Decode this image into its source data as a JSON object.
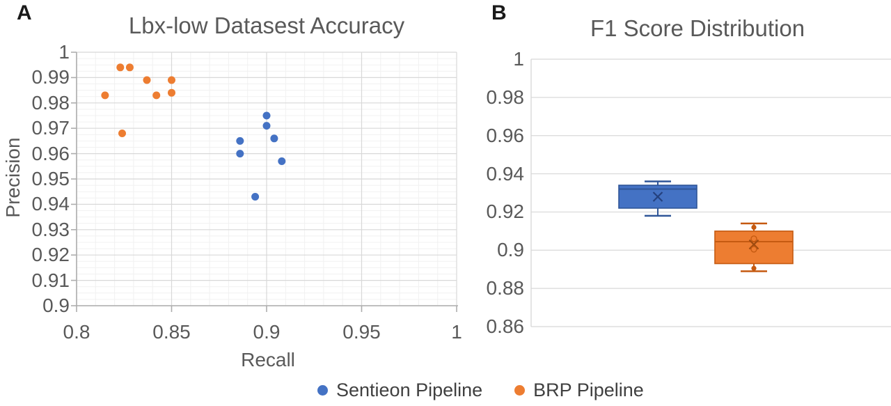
{
  "panels": {
    "a": {
      "letter": "A"
    },
    "b": {
      "letter": "B"
    }
  },
  "colors": {
    "blue": "#4472C4",
    "blue_dark": "#2F5597",
    "blue_mean": "#24407E",
    "orange": "#ED7D31",
    "orange_dark": "#C55A11",
    "orange_mean": "#9E4B10",
    "title_text": "#595959",
    "tick_text": "#595959",
    "legend_text": "#404040",
    "grid_major": "#D8D8D8",
    "grid_minor": "#F1F1F1",
    "axis_line": "#ADADAD"
  },
  "chart_data": [
    {
      "id": "panel-a",
      "type": "scatter",
      "title": "Lbx-low Datasest Accuracy",
      "xlabel": "Recall",
      "ylabel": "Precision",
      "xlim": [
        0.8,
        1.0
      ],
      "ylim": [
        0.9,
        1.0
      ],
      "grid": "major and minor, both axes",
      "x_ticks": [
        0.8,
        0.85,
        0.9,
        0.95,
        1.0
      ],
      "x_tick_labels": [
        "0.8",
        "0.85",
        "0.9",
        "0.95",
        "1"
      ],
      "y_ticks": [
        1.0,
        0.99,
        0.98,
        0.97,
        0.96,
        0.95,
        0.94,
        0.93,
        0.92,
        0.91,
        0.9
      ],
      "y_tick_labels": [
        "1",
        "0.99",
        "0.98",
        "0.97",
        "0.96",
        "0.95",
        "0.94",
        "0.93",
        "0.92",
        "0.91",
        "0.9"
      ],
      "x_minor_step": 0.01,
      "y_minor_step": 0.0025,
      "series": [
        {
          "name": "Sentieon Pipeline",
          "color": "#4472C4",
          "points": [
            [
              0.886,
              0.965
            ],
            [
              0.886,
              0.96
            ],
            [
              0.894,
              0.943
            ],
            [
              0.9,
              0.975
            ],
            [
              0.9,
              0.971
            ],
            [
              0.904,
              0.966
            ],
            [
              0.908,
              0.957
            ]
          ]
        },
        {
          "name": "BRP Pipeline",
          "color": "#ED7D31",
          "points": [
            [
              0.815,
              0.983
            ],
            [
              0.823,
              0.994
            ],
            [
              0.828,
              0.994
            ],
            [
              0.824,
              0.968
            ],
            [
              0.837,
              0.989
            ],
            [
              0.842,
              0.983
            ],
            [
              0.85,
              0.989
            ],
            [
              0.85,
              0.984
            ]
          ]
        }
      ]
    },
    {
      "id": "panel-b",
      "type": "box",
      "title": "F1 Score Distribution",
      "ylim": [
        0.86,
        1.0
      ],
      "grid": "major horizontal only",
      "y_ticks": [
        1.0,
        0.98,
        0.96,
        0.94,
        0.92,
        0.9,
        0.88,
        0.86
      ],
      "y_tick_labels": [
        "1",
        "0.98",
        "0.96",
        "0.94",
        "0.92",
        "0.9",
        "0.88",
        "0.86"
      ],
      "boxes": [
        {
          "name": "Sentieon Pipeline",
          "fill": "#4472C4",
          "stroke": "#2F5597",
          "whisker_low": 0.918,
          "q1": 0.922,
          "median": 0.932,
          "q3": 0.934,
          "whisker_high": 0.936,
          "mean": 0.928,
          "whisker_end_dots": [],
          "ghost_circles": []
        },
        {
          "name": "BRP Pipeline",
          "fill": "#ED7D31",
          "stroke": "#C55A11",
          "whisker_low": 0.889,
          "q1": 0.893,
          "median": 0.9045,
          "q3": 0.91,
          "whisker_high": 0.914,
          "mean": 0.903,
          "whisker_end_dots": [
            0.912,
            0.8905
          ],
          "ghost_circles": [
            0.906,
            0.9005
          ]
        }
      ]
    }
  ],
  "legend": {
    "position": "bottom-center",
    "items": [
      {
        "label": "Sentieon Pipeline",
        "color": "#4472C4"
      },
      {
        "label": "BRP Pipeline",
        "color": "#ED7D31"
      }
    ]
  }
}
